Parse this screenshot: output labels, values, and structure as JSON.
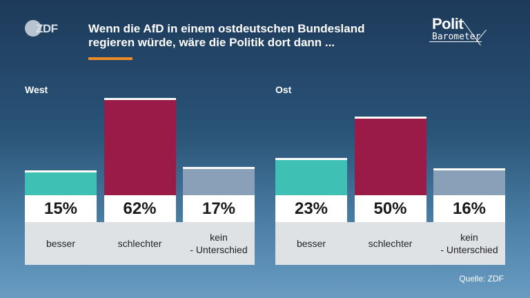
{
  "header": {
    "logo_left": "ZDF",
    "title_line1": "Wenn die AfD in einem ostdeutschen Bundesland",
    "title_line2": "regieren würde, wäre die Politik dort dann ...",
    "logo_right_top": "Polit",
    "logo_right_bottom": "Barometer",
    "accent_color": "#f08a24"
  },
  "source": "Quelle: ZDF",
  "colors": {
    "besser": "#3fc0b4",
    "schlechter": "#9a1a48",
    "kein": "#8aa0b8"
  },
  "chart_data": [
    {
      "type": "bar",
      "title": "West",
      "categories": [
        "besser",
        "schlechter",
        "kein\n- Unterschied"
      ],
      "values": [
        15,
        62,
        17
      ],
      "value_labels": [
        "15%",
        "62%",
        "17%"
      ],
      "unit": "%"
    },
    {
      "type": "bar",
      "title": "Ost",
      "categories": [
        "besser",
        "schlechter",
        "kein\n- Unterschied"
      ],
      "values": [
        23,
        50,
        16
      ],
      "value_labels": [
        "23%",
        "50%",
        "16%"
      ],
      "unit": "%"
    }
  ]
}
